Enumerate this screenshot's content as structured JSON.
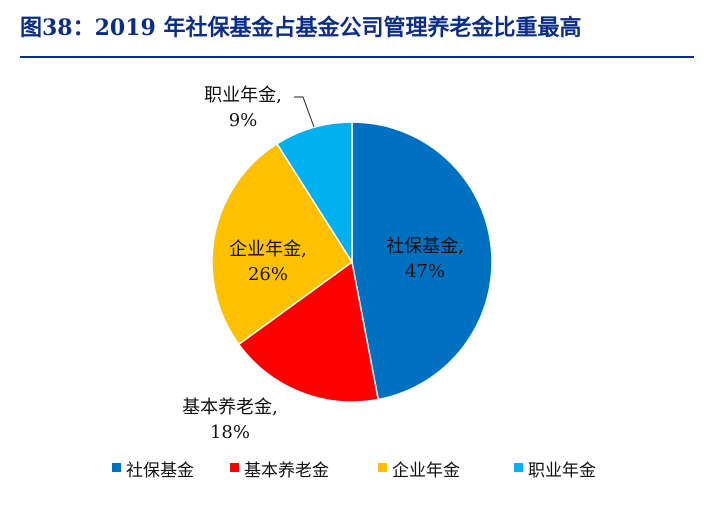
{
  "title": "图38：2019 年社保基金占基金公司管理养老金比重最高",
  "chart_data": {
    "type": "pie",
    "title": "",
    "slices": [
      {
        "name": "社保基金",
        "value": 47,
        "label_line1": "社保基金,",
        "label_line2": "47%",
        "color": "#0070c0"
      },
      {
        "name": "基本养老金",
        "value": 18,
        "label_line1": "基本养老金,",
        "label_line2": "18%",
        "color": "#ff0000"
      },
      {
        "name": "企业年金",
        "value": 26,
        "label_line1": "企业年金,",
        "label_line2": "26%",
        "color": "#ffc000"
      },
      {
        "name": "职业年金",
        "value": 9,
        "label_line1": "职业年金,",
        "label_line2": "9%",
        "color": "#00b0f0"
      }
    ],
    "legend": [
      "社保基金",
      "基本养老金",
      "企业年金",
      "职业年金"
    ],
    "legend_position": "bottom"
  }
}
